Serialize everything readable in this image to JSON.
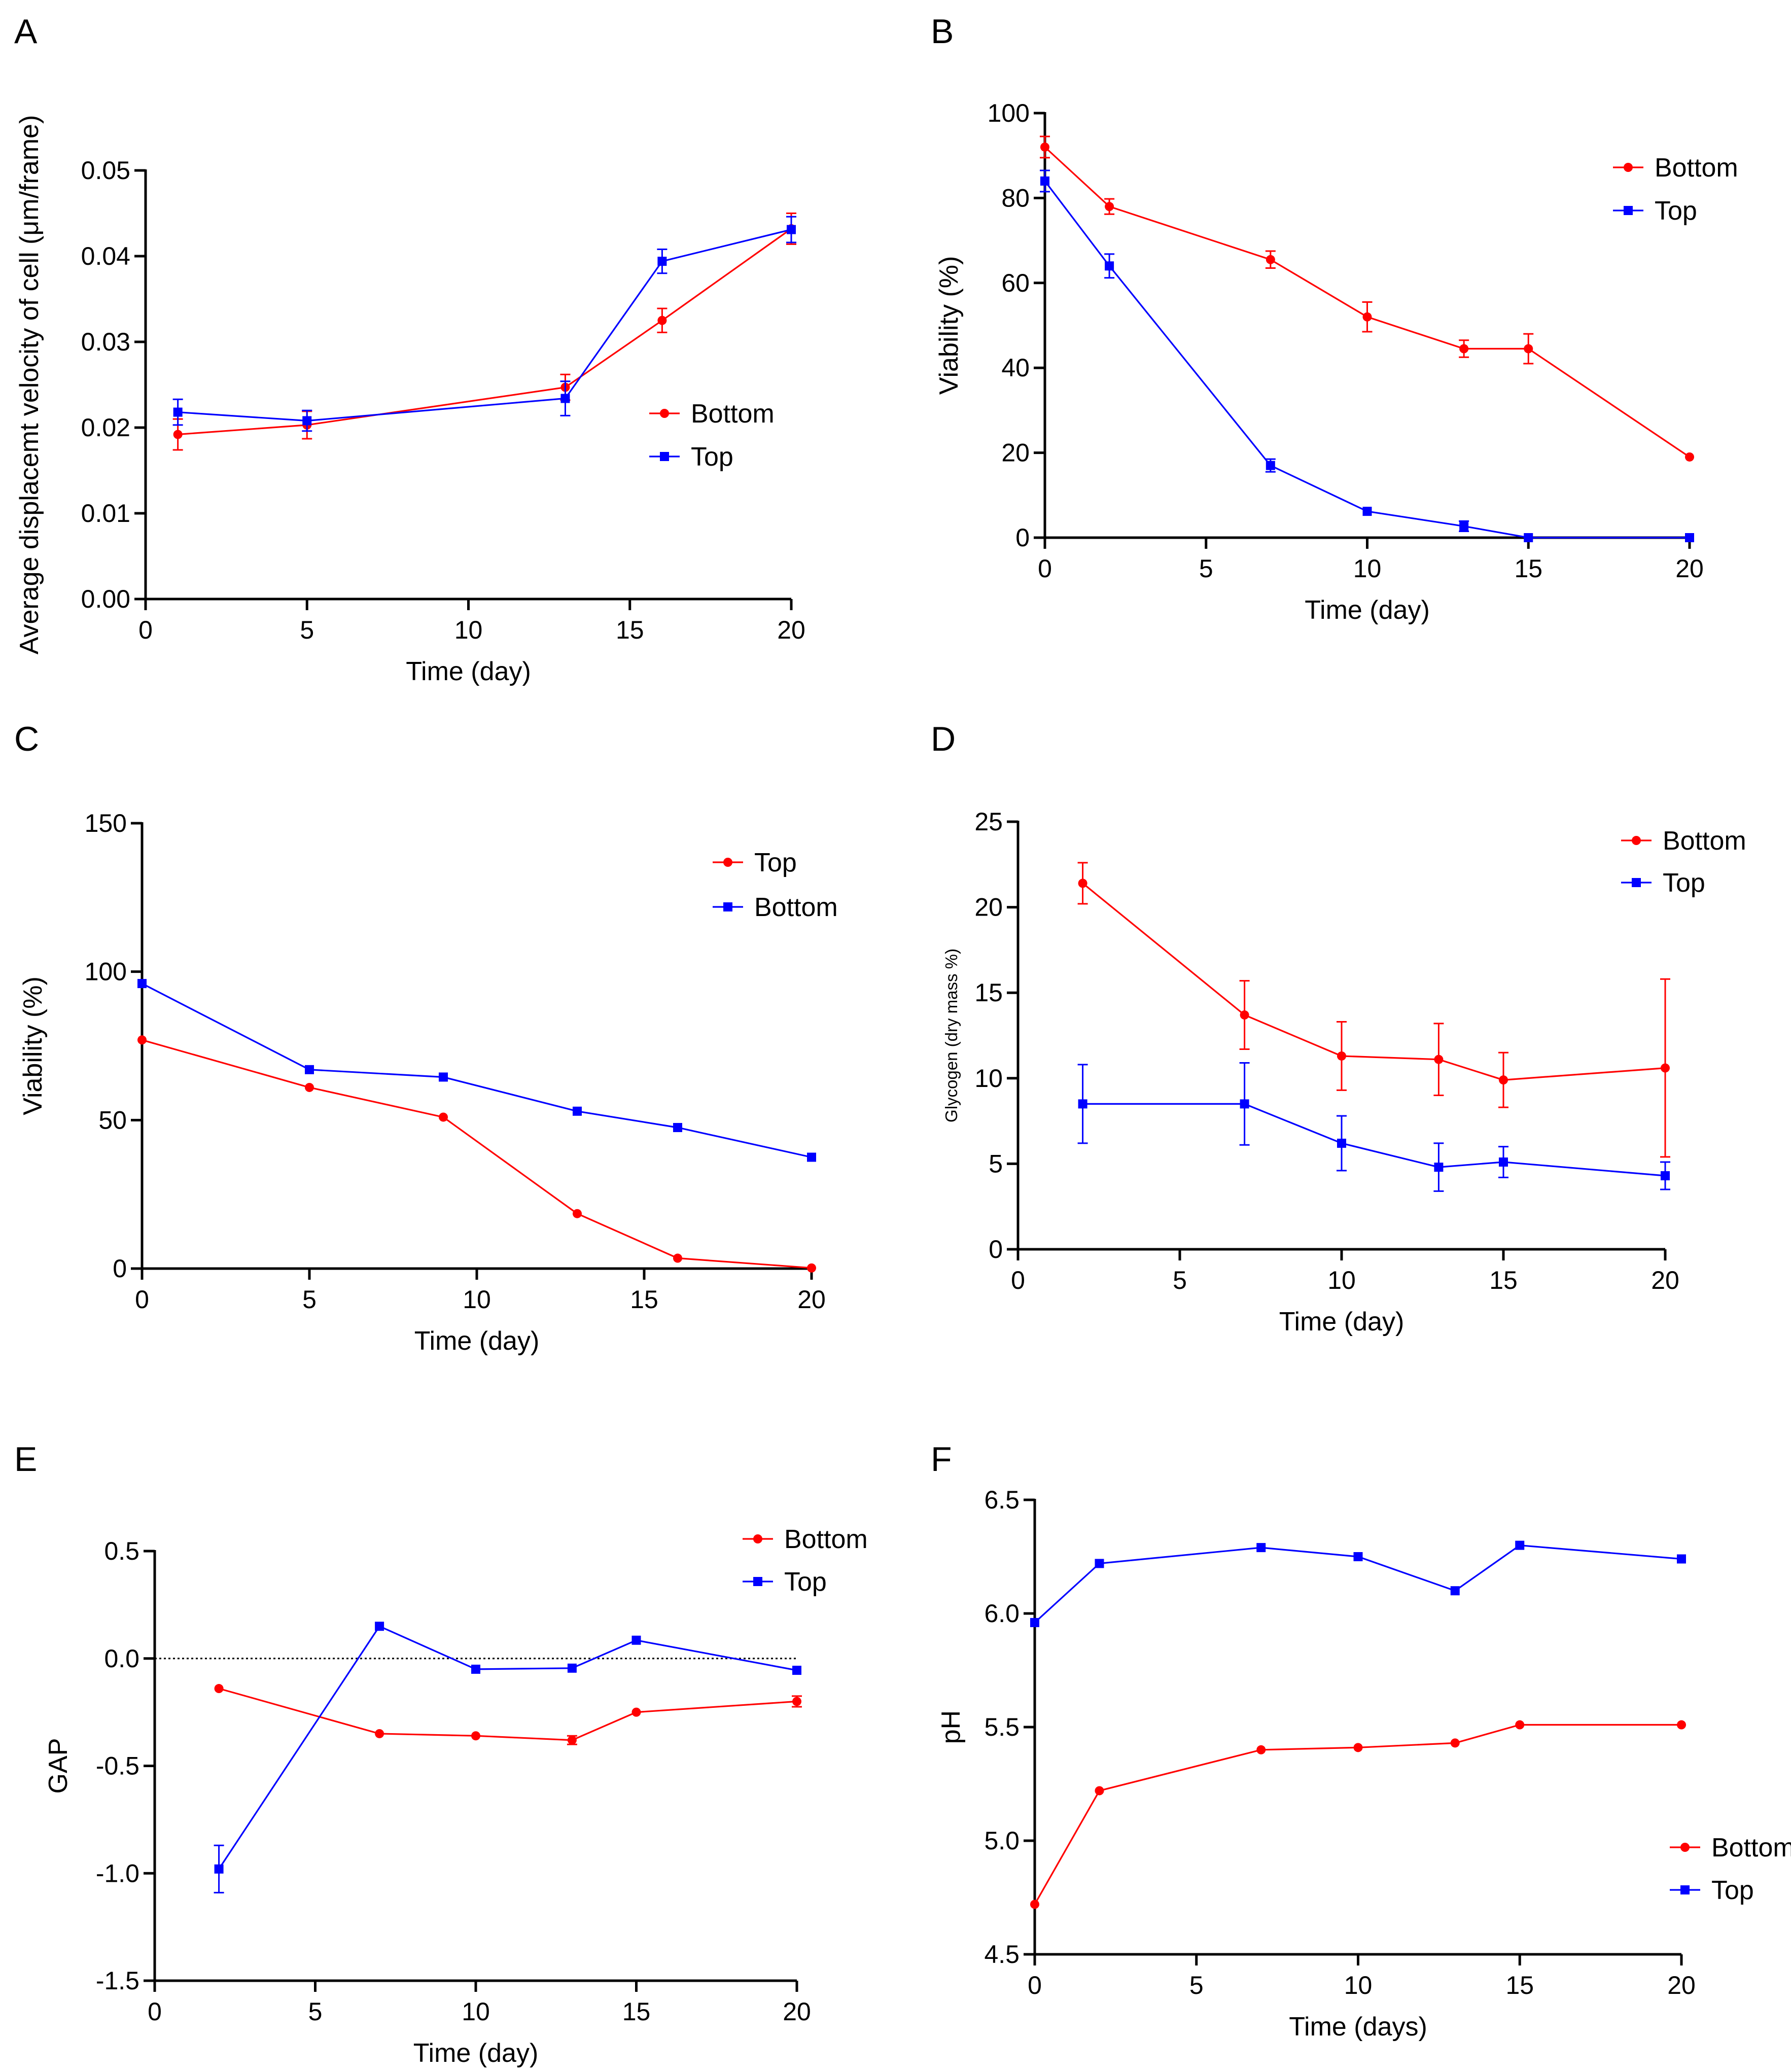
{
  "colors": {
    "red": "#ff0000",
    "blue": "#0000ff",
    "axis": "#000000"
  },
  "chart_data": [
    {
      "panel": "A",
      "type": "line",
      "xlabel": "Time (day)",
      "ylabel": "Average displacemt velocity of cell (μm/frame)",
      "xlim": [
        0,
        20
      ],
      "ylim": [
        0,
        0.05
      ],
      "xticks": [
        "0",
        "5",
        "10",
        "15",
        "20"
      ],
      "yticks": [
        "0.00",
        "0.01",
        "0.02",
        "0.03",
        "0.04",
        "0.05"
      ],
      "legend": [
        "Bottom",
        "Top"
      ],
      "legend_position": "middle-right",
      "series": [
        {
          "name": "Bottom",
          "color": "red",
          "marker": "circle",
          "x": [
            1,
            5,
            13,
            16,
            20
          ],
          "y": [
            0.0192,
            0.0203,
            0.0247,
            0.0325,
            0.0432
          ],
          "err": [
            0.0018,
            0.0016,
            0.0015,
            0.0014,
            0.0018
          ]
        },
        {
          "name": "Top",
          "color": "blue",
          "marker": "square",
          "x": [
            1,
            5,
            13,
            16,
            20
          ],
          "y": [
            0.0218,
            0.0208,
            0.0234,
            0.0394,
            0.0431
          ],
          "err": [
            0.0015,
            0.0012,
            0.002,
            0.0014,
            0.0015
          ]
        }
      ]
    },
    {
      "panel": "B",
      "type": "line",
      "xlabel": "Time (day)",
      "ylabel": "Viability (%)",
      "xlim": [
        0,
        20
      ],
      "ylim": [
        0,
        100
      ],
      "xticks": [
        "0",
        "5",
        "10",
        "15",
        "20"
      ],
      "yticks": [
        "0",
        "20",
        "40",
        "60",
        "80",
        "100"
      ],
      "legend": [
        "Bottom",
        "Top"
      ],
      "legend_position": "top-right",
      "series": [
        {
          "name": "Bottom",
          "color": "red",
          "marker": "circle",
          "x": [
            0,
            2,
            7,
            10,
            13,
            15,
            20
          ],
          "y": [
            92,
            78,
            65.5,
            52,
            44.5,
            44.5,
            19
          ],
          "err": [
            2.5,
            1.8,
            2,
            3.5,
            2,
            3.5,
            0
          ]
        },
        {
          "name": "Top",
          "color": "blue",
          "marker": "square",
          "x": [
            0,
            2,
            7,
            10,
            13,
            15,
            20
          ],
          "y": [
            84,
            64,
            17,
            6.2,
            2.7,
            0,
            0
          ],
          "err": [
            2.5,
            2.8,
            1.5,
            0,
            1.2,
            0,
            0
          ]
        }
      ]
    },
    {
      "panel": "C",
      "type": "line",
      "xlabel": "Time (day)",
      "ylabel": "Viability (%)",
      "xlim": [
        0,
        20
      ],
      "ylim": [
        0,
        150
      ],
      "xticks": [
        "0",
        "5",
        "10",
        "15",
        "20"
      ],
      "yticks": [
        "0",
        "50",
        "100",
        "150"
      ],
      "legend": [
        "Top",
        "Bottom"
      ],
      "legend_position": "top-right",
      "series": [
        {
          "name": "Top",
          "color": "red",
          "marker": "circle",
          "x": [
            0,
            5,
            9,
            13,
            16,
            20
          ],
          "y": [
            77,
            61,
            51,
            18.5,
            3.5,
            0.2
          ],
          "err": [
            0,
            0,
            0,
            0,
            0,
            0
          ]
        },
        {
          "name": "Bottom",
          "color": "blue",
          "marker": "square",
          "x": [
            0,
            5,
            9,
            13,
            16,
            20
          ],
          "y": [
            96,
            67,
            64.5,
            53,
            47.5,
            37.5
          ],
          "err": [
            0,
            0,
            0,
            0,
            0,
            0
          ]
        }
      ]
    },
    {
      "panel": "D",
      "type": "line",
      "xlabel": "Time (day)",
      "ylabel": "Glycogen (dry mass %)",
      "ylabel_small": true,
      "xlim": [
        0,
        20
      ],
      "ylim": [
        0,
        25
      ],
      "xticks": [
        "0",
        "5",
        "10",
        "15",
        "20"
      ],
      "yticks": [
        "0",
        "5",
        "10",
        "15",
        "20",
        "25"
      ],
      "legend": [
        "Bottom",
        "Top"
      ],
      "legend_position": "top-right",
      "series": [
        {
          "name": "Bottom",
          "color": "red",
          "marker": "circle",
          "x": [
            2,
            7,
            10,
            13,
            15,
            20
          ],
          "y": [
            21.4,
            13.7,
            11.3,
            11.1,
            9.9,
            10.6
          ],
          "err": [
            1.2,
            2.0,
            2.0,
            2.1,
            1.6,
            5.2
          ]
        },
        {
          "name": "Top",
          "color": "blue",
          "marker": "square",
          "x": [
            2,
            7,
            10,
            13,
            15,
            20
          ],
          "y": [
            8.5,
            8.5,
            6.2,
            4.8,
            5.1,
            4.3
          ],
          "err": [
            2.3,
            2.4,
            1.6,
            1.4,
            0.9,
            0.8
          ]
        }
      ]
    },
    {
      "panel": "E",
      "type": "line",
      "xlabel": "Time (day)",
      "ylabel": "GAP",
      "xlim": [
        0,
        20
      ],
      "ylim": [
        -1.5,
        0.5
      ],
      "xticks": [
        "0",
        "5",
        "10",
        "15",
        "20"
      ],
      "yticks": [
        "-1.5",
        "-1.0",
        "-0.5",
        "0.0",
        "0.5"
      ],
      "reference_line_y": 0,
      "legend": [
        "Bottom",
        "Top"
      ],
      "legend_position": "top-right",
      "series": [
        {
          "name": "Bottom",
          "color": "red",
          "marker": "circle",
          "x": [
            2,
            7,
            10,
            13,
            15,
            20
          ],
          "y": [
            -0.14,
            -0.35,
            -0.36,
            -0.38,
            -0.25,
            -0.2
          ],
          "err": [
            0,
            0,
            0,
            0.02,
            0,
            0.025
          ]
        },
        {
          "name": "Top",
          "color": "blue",
          "marker": "square",
          "x": [
            2,
            7,
            10,
            13,
            15,
            20
          ],
          "y": [
            -0.98,
            0.15,
            -0.05,
            -0.045,
            0.085,
            -0.055
          ],
          "err": [
            0.11,
            0,
            0,
            0,
            0,
            0
          ]
        }
      ]
    },
    {
      "panel": "F",
      "type": "line",
      "xlabel": "Time (days)",
      "ylabel": "pH",
      "xlim": [
        0,
        20
      ],
      "ylim": [
        4.5,
        6.5
      ],
      "xticks": [
        "0",
        "5",
        "10",
        "15",
        "20"
      ],
      "yticks": [
        "4.5",
        "5.0",
        "5.5",
        "6.0",
        "6.5"
      ],
      "legend": [
        "Bottom",
        "Top"
      ],
      "legend_position": "bottom-right",
      "series": [
        {
          "name": "Bottom",
          "color": "red",
          "marker": "circle",
          "x": [
            0,
            2,
            7,
            10,
            13,
            15,
            20
          ],
          "y": [
            4.72,
            5.22,
            5.4,
            5.41,
            5.43,
            5.51,
            5.51
          ],
          "err": [
            0,
            0,
            0,
            0,
            0,
            0,
            0
          ]
        },
        {
          "name": "Top",
          "color": "blue",
          "marker": "square",
          "x": [
            0,
            2,
            7,
            10,
            13,
            15,
            20
          ],
          "y": [
            5.96,
            6.22,
            6.29,
            6.25,
            6.1,
            6.3,
            6.24
          ],
          "err": [
            0,
            0,
            0,
            0,
            0,
            0,
            0
          ]
        }
      ]
    }
  ]
}
